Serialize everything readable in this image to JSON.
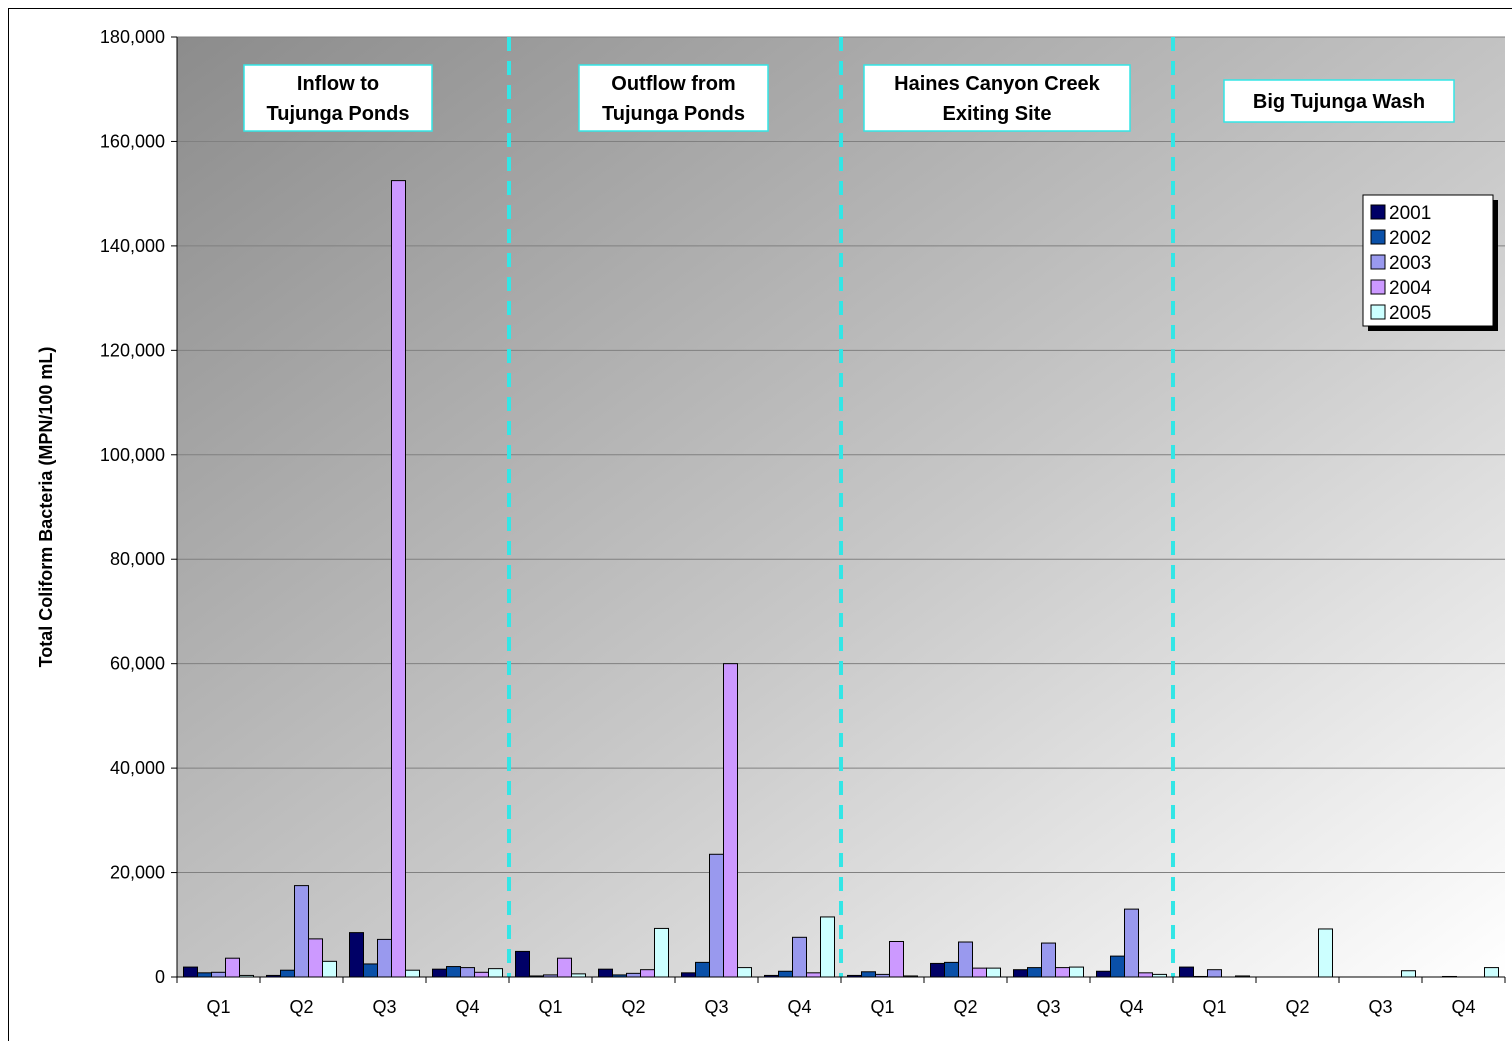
{
  "chart_data": {
    "type": "bar",
    "ylabel": "Total Coliform Bacteria (MPN/100 mL)",
    "ylim": [
      0,
      180000
    ],
    "yticks": [
      0,
      20000,
      40000,
      60000,
      80000,
      100000,
      120000,
      140000,
      160000,
      180000
    ],
    "ytick_labels": [
      "0",
      "20,000",
      "40,000",
      "60,000",
      "80,000",
      "100,000",
      "120,000",
      "140,000",
      "160,000",
      "180,000"
    ],
    "grid": true,
    "legend_position": "right",
    "categories": [
      "Q1",
      "Q2",
      "Q3",
      "Q4",
      "Q1",
      "Q2",
      "Q3",
      "Q4",
      "Q1",
      "Q2",
      "Q3",
      "Q4",
      "Q1",
      "Q2",
      "Q3",
      "Q4"
    ],
    "groups": [
      {
        "label": "Inflow to\nTujunga Ponds",
        "start": 0,
        "end": 3
      },
      {
        "label": "Outflow from\nTujunga Ponds",
        "start": 4,
        "end": 7
      },
      {
        "label": "Haines Canyon Creek\nExiting Site",
        "start": 8,
        "end": 11
      },
      {
        "label": "Big Tujunga Wash",
        "start": 12,
        "end": 15
      }
    ],
    "series": [
      {
        "name": "2001",
        "color": "#000066",
        "values": [
          1900,
          300,
          8500,
          1500,
          4900,
          1500,
          800,
          300,
          300,
          2600,
          1400,
          1100,
          1900,
          0,
          0,
          0
        ]
      },
      {
        "name": "2002",
        "color": "#0a50a8",
        "values": [
          800,
          1300,
          2500,
          2000,
          200,
          400,
          2800,
          1100,
          1000,
          2800,
          1800,
          4000,
          100,
          0,
          0,
          100
        ]
      },
      {
        "name": "2003",
        "color": "#9999ee",
        "values": [
          900,
          17500,
          7200,
          1800,
          400,
          700,
          23500,
          7600,
          500,
          6700,
          6500,
          13000,
          1400,
          0,
          0,
          0
        ]
      },
      {
        "name": "2004",
        "color": "#cc99ff",
        "values": [
          3600,
          7300,
          152500,
          900,
          3600,
          1400,
          60000,
          800,
          6800,
          1700,
          1800,
          800,
          0,
          0,
          0,
          0
        ]
      },
      {
        "name": "2005",
        "color": "#ccffff",
        "values": [
          300,
          3000,
          1300,
          1600,
          600,
          9300,
          1800,
          11500,
          200,
          1700,
          1900,
          500,
          200,
          9200,
          1200,
          1800
        ]
      }
    ]
  }
}
